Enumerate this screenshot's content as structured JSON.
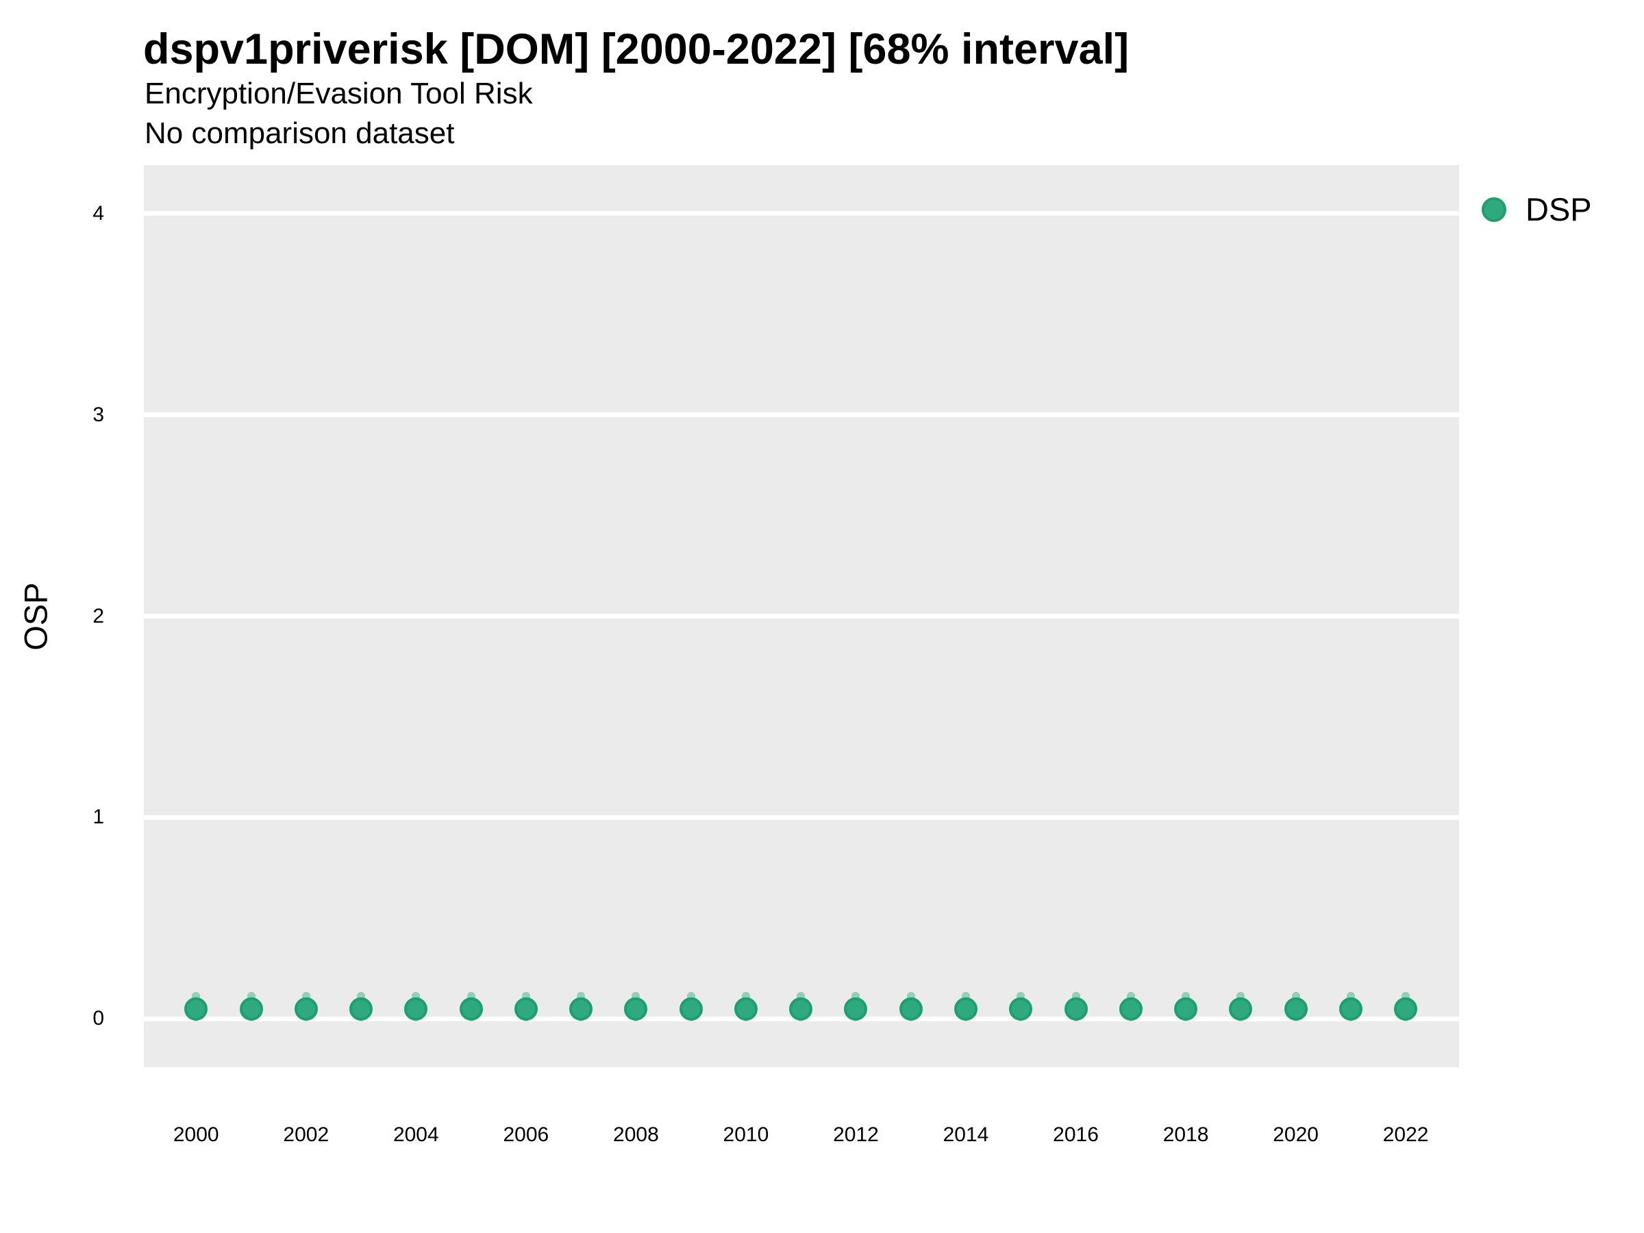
{
  "header": {
    "title": "dspv1priverisk [DOM] [2000-2022] [68% interval]",
    "subtitle": "Encryption/Evasion Tool Risk",
    "note": "No comparison dataset"
  },
  "legend": {
    "position": "right",
    "items": [
      {
        "label": "DSP",
        "marker": "circle-icon",
        "color": "#2faa7e",
        "stroke": "#1da06f"
      }
    ]
  },
  "colors": {
    "panel_background": "#ebebeb",
    "gridline": "#ffffff",
    "text": "#000000",
    "point_fill": "#2faa7e",
    "point_stroke": "#1da06f",
    "interval_fill": "rgba(47,170,126,0.45)"
  },
  "chart_data": {
    "type": "scatter",
    "title": "dspv1priverisk [DOM] [2000-2022] [68% interval]",
    "subtitle": "Encryption/Evasion Tool Risk",
    "annotation": "No comparison dataset",
    "xlabel": "",
    "ylabel": "OSP",
    "xlim": [
      1999.05,
      2022.97
    ],
    "ylim": [
      -0.24,
      4.24
    ],
    "x_ticks": [
      2000,
      2002,
      2004,
      2006,
      2008,
      2010,
      2012,
      2014,
      2016,
      2018,
      2020,
      2022
    ],
    "y_ticks": [
      0,
      1,
      2,
      3,
      4
    ],
    "grid": "major-horizontal-only",
    "legend_position": "right",
    "series": [
      {
        "name": "DSP",
        "points": [
          {
            "x": 2000,
            "y": 0.05,
            "lo": 0.0,
            "hi": 0.12
          },
          {
            "x": 2001,
            "y": 0.05,
            "lo": 0.0,
            "hi": 0.12
          },
          {
            "x": 2002,
            "y": 0.05,
            "lo": 0.0,
            "hi": 0.12
          },
          {
            "x": 2003,
            "y": 0.05,
            "lo": 0.0,
            "hi": 0.12
          },
          {
            "x": 2004,
            "y": 0.05,
            "lo": 0.0,
            "hi": 0.12
          },
          {
            "x": 2005,
            "y": 0.05,
            "lo": 0.0,
            "hi": 0.12
          },
          {
            "x": 2006,
            "y": 0.05,
            "lo": 0.0,
            "hi": 0.12
          },
          {
            "x": 2007,
            "y": 0.05,
            "lo": 0.0,
            "hi": 0.12
          },
          {
            "x": 2008,
            "y": 0.05,
            "lo": 0.0,
            "hi": 0.12
          },
          {
            "x": 2009,
            "y": 0.05,
            "lo": 0.0,
            "hi": 0.12
          },
          {
            "x": 2010,
            "y": 0.05,
            "lo": 0.0,
            "hi": 0.12
          },
          {
            "x": 2011,
            "y": 0.05,
            "lo": 0.0,
            "hi": 0.12
          },
          {
            "x": 2012,
            "y": 0.05,
            "lo": 0.0,
            "hi": 0.12
          },
          {
            "x": 2013,
            "y": 0.05,
            "lo": 0.0,
            "hi": 0.12
          },
          {
            "x": 2014,
            "y": 0.05,
            "lo": 0.0,
            "hi": 0.12
          },
          {
            "x": 2015,
            "y": 0.05,
            "lo": 0.0,
            "hi": 0.12
          },
          {
            "x": 2016,
            "y": 0.05,
            "lo": 0.0,
            "hi": 0.12
          },
          {
            "x": 2017,
            "y": 0.05,
            "lo": 0.0,
            "hi": 0.12
          },
          {
            "x": 2018,
            "y": 0.05,
            "lo": 0.0,
            "hi": 0.12
          },
          {
            "x": 2019,
            "y": 0.05,
            "lo": 0.0,
            "hi": 0.12
          },
          {
            "x": 2020,
            "y": 0.05,
            "lo": 0.0,
            "hi": 0.12
          },
          {
            "x": 2021,
            "y": 0.05,
            "lo": 0.0,
            "hi": 0.12
          },
          {
            "x": 2022,
            "y": 0.05,
            "lo": 0.0,
            "hi": 0.12
          }
        ]
      }
    ]
  }
}
